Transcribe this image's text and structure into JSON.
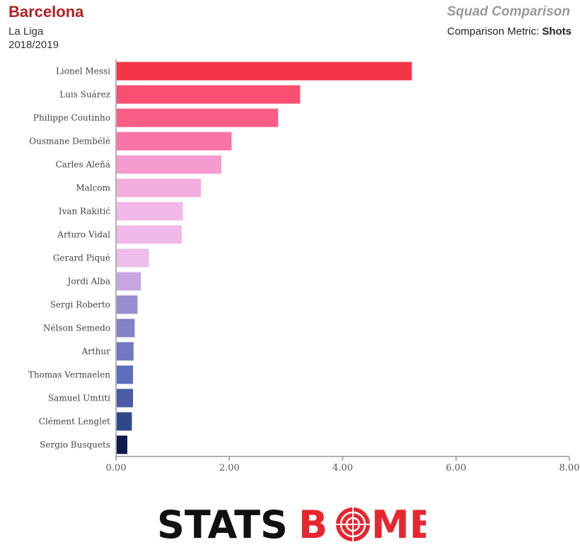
{
  "header": {
    "team": "Barcelona",
    "competition": "La Liga",
    "season": "2018/2019",
    "title": "Squad Comparison",
    "metric_label": "Comparison Metric:",
    "metric_value": "Shots"
  },
  "logo": {
    "text_a": "STATS",
    "text_b": "B",
    "text_c": "MB"
  },
  "chart_data": {
    "type": "bar",
    "orientation": "horizontal",
    "categories": [
      "Lionel Messi",
      "Luis Suárez",
      "Philippe Coutinho",
      "Ousmane Dembélé",
      "Carles Aleñá",
      "Malcom",
      "Ivan Rakitić",
      "Arturo Vidal",
      "Gerard Piqué",
      "Jordi Alba",
      "Sergi Roberto",
      "Nélson Semedo",
      "Arthur",
      "Thomas Vermaelen",
      "Samuel Umtiti",
      "Clément Lenglet",
      "Sergio Busquets"
    ],
    "values": [
      5.22,
      3.25,
      2.86,
      2.04,
      1.86,
      1.5,
      1.18,
      1.16,
      0.58,
      0.44,
      0.38,
      0.33,
      0.31,
      0.3,
      0.3,
      0.28,
      0.2
    ],
    "colors": [
      "#f33545",
      "#fb4f72",
      "#fb5c86",
      "#f874a6",
      "#f59bd0",
      "#f2addf",
      "#f1b8e9",
      "#f0b9e9",
      "#eebdea",
      "#c6a5e0",
      "#9a8ccf",
      "#8580c8",
      "#7378c2",
      "#5c6fbd",
      "#4a5ba8",
      "#2f4988",
      "#0f1a4f"
    ],
    "xlim": [
      0,
      8
    ],
    "xticks": [
      "0.00",
      "2.00",
      "4.00",
      "6.00",
      "8.00"
    ],
    "xtick_values": [
      0,
      2,
      4,
      6,
      8
    ]
  }
}
